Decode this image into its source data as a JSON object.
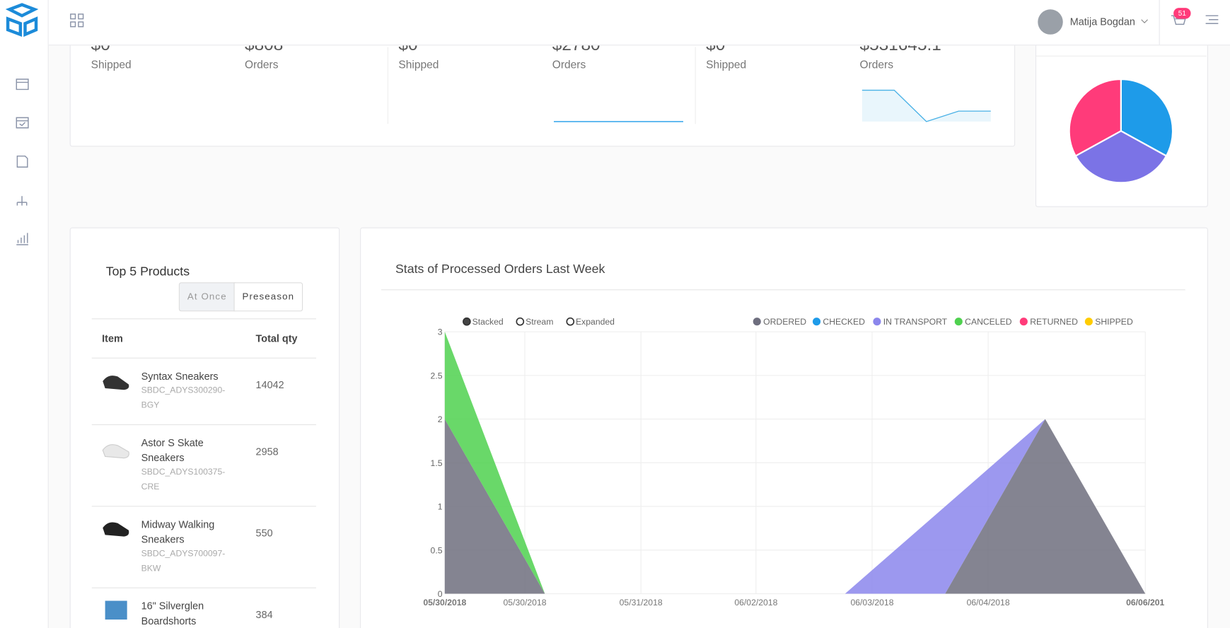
{
  "header": {
    "user": "Matija Bogdan",
    "cart_badge": "51"
  },
  "summary_cards": [
    {
      "items": [
        {
          "value": "$0",
          "label": "Shipped"
        },
        {
          "value": "$808",
          "label": "Orders"
        }
      ]
    },
    {
      "items": [
        {
          "value": "$0",
          "label": "Shipped"
        },
        {
          "value": "$2780",
          "label": "Orders"
        }
      ]
    },
    {
      "items": [
        {
          "value": "$0",
          "label": "Shipped"
        },
        {
          "value": "$531645.1",
          "label": "Orders"
        }
      ]
    }
  ],
  "top_products": {
    "title": "Top 5 Products",
    "tabs": [
      "At Once",
      "Preseason"
    ],
    "columns": [
      "Item",
      "Total qty"
    ],
    "rows": [
      {
        "name": "Syntax Sneakers",
        "sku": "SBDC_ADYS300290-BGY",
        "qty": 14042
      },
      {
        "name": "Astor S Skate Sneakers",
        "sku": "SBDC_ADYS100375-CRE",
        "qty": 2958
      },
      {
        "name": "Midway Walking Sneakers",
        "sku": "SBDC_ADYS700097-BKW",
        "qty": 550
      },
      {
        "name": "16\" Silverglen Boardshorts",
        "qty": 384
      }
    ]
  },
  "chart_data": [
    {
      "type": "stacked_area",
      "title": "Stats of Processed Orders Last Week",
      "modes": [
        "Stacked",
        "Stream",
        "Expanded"
      ],
      "x": [
        0,
        1,
        2,
        3,
        4,
        5,
        6,
        7
      ],
      "xlim": [
        0,
        7
      ],
      "xticks": [
        {
          "value": 0,
          "label": "05/30/2018"
        },
        {
          "value": 0.8,
          "label": "05/30/2018"
        },
        {
          "value": 1.96,
          "label": "05/31/2018"
        },
        {
          "value": 3.11,
          "label": "06/02/2018"
        },
        {
          "value": 4.27,
          "label": "06/03/2018"
        },
        {
          "value": 5.43,
          "label": "06/04/2018"
        },
        {
          "value": 7,
          "label": "06/06/201"
        }
      ],
      "ylim": [
        0,
        3
      ],
      "yticks": [
        0,
        0.5,
        1,
        1.5,
        2,
        2.5,
        3
      ],
      "grid": true,
      "series": [
        {
          "name": "ORDERED",
          "color": "#6e6e7e",
          "values": [
            2,
            0,
            0,
            0,
            0,
            0,
            2,
            0
          ]
        },
        {
          "name": "CHECKED",
          "color": "#1e9be9",
          "values": [
            0,
            0,
            0,
            0,
            0,
            0,
            0,
            0
          ]
        },
        {
          "name": "IN TRANSPORT",
          "color": "#8b86ec",
          "values": [
            0,
            0,
            0,
            0,
            0,
            1,
            0,
            0
          ]
        },
        {
          "name": "CANCELED",
          "color": "#4fd14f",
          "values": [
            1,
            0,
            0,
            0,
            0,
            0,
            0,
            0
          ]
        },
        {
          "name": "RETURNED",
          "color": "#ff3b7a",
          "values": [
            0,
            0,
            0,
            0,
            0,
            0,
            0,
            0
          ]
        },
        {
          "name": "SHIPPED",
          "color": "#ffcc00",
          "values": [
            0,
            0,
            0,
            0,
            0,
            0,
            0,
            0
          ]
        }
      ]
    },
    {
      "type": "pie",
      "values": [
        33,
        34,
        33
      ],
      "colors": [
        "#1e9be9",
        "#7b73e6",
        "#ff3b7a"
      ]
    },
    {
      "type": "sparkline",
      "values": [
        0,
        0,
        0,
        0,
        0
      ],
      "ylim": [
        0,
        3
      ],
      "color": "#1e9be9"
    },
    {
      "type": "sparkline",
      "values": [
        3,
        3,
        0,
        1,
        1
      ],
      "ylim": [
        0,
        3
      ],
      "color": "#49b1e6"
    }
  ]
}
